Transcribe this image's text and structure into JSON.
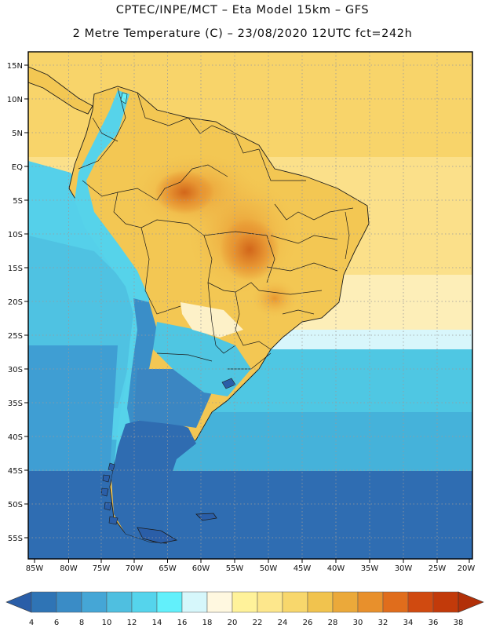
{
  "header": {
    "line1": "CPTEC/INPE/MCT –  Eta Model 15km – GFS",
    "line2": "2 Metre Temperature (C) – 23/08/2020 12UTC fct=242h"
  },
  "map": {
    "lat_labels": [
      "15N",
      "10N",
      "5N",
      "EQ",
      "5S",
      "10S",
      "15S",
      "20S",
      "25S",
      "30S",
      "35S",
      "40S",
      "45S",
      "50S",
      "55S"
    ],
    "lon_labels": [
      "85W",
      "80W",
      "75W",
      "70W",
      "65W",
      "60W",
      "55W",
      "50W",
      "45W",
      "40W",
      "35W",
      "30W",
      "25W",
      "20W"
    ]
  },
  "legend": {
    "values": [
      "4",
      "6",
      "8",
      "10",
      "12",
      "14",
      "16",
      "18",
      "20",
      "22",
      "24",
      "26",
      "28",
      "30",
      "32",
      "34",
      "36",
      "38"
    ],
    "colors": [
      "#2a5ea8",
      "#2f74b5",
      "#3a8cc6",
      "#45a6d6",
      "#4fbfe0",
      "#55d4ec",
      "#62f0fb",
      "#d6f7fb",
      "#fff8e0",
      "#fff29a",
      "#fde78c",
      "#f8d76c",
      "#f1c34e",
      "#eba93a",
      "#e8902c",
      "#e06d1c",
      "#d04a10",
      "#c23a0a",
      "#b23008"
    ]
  }
}
